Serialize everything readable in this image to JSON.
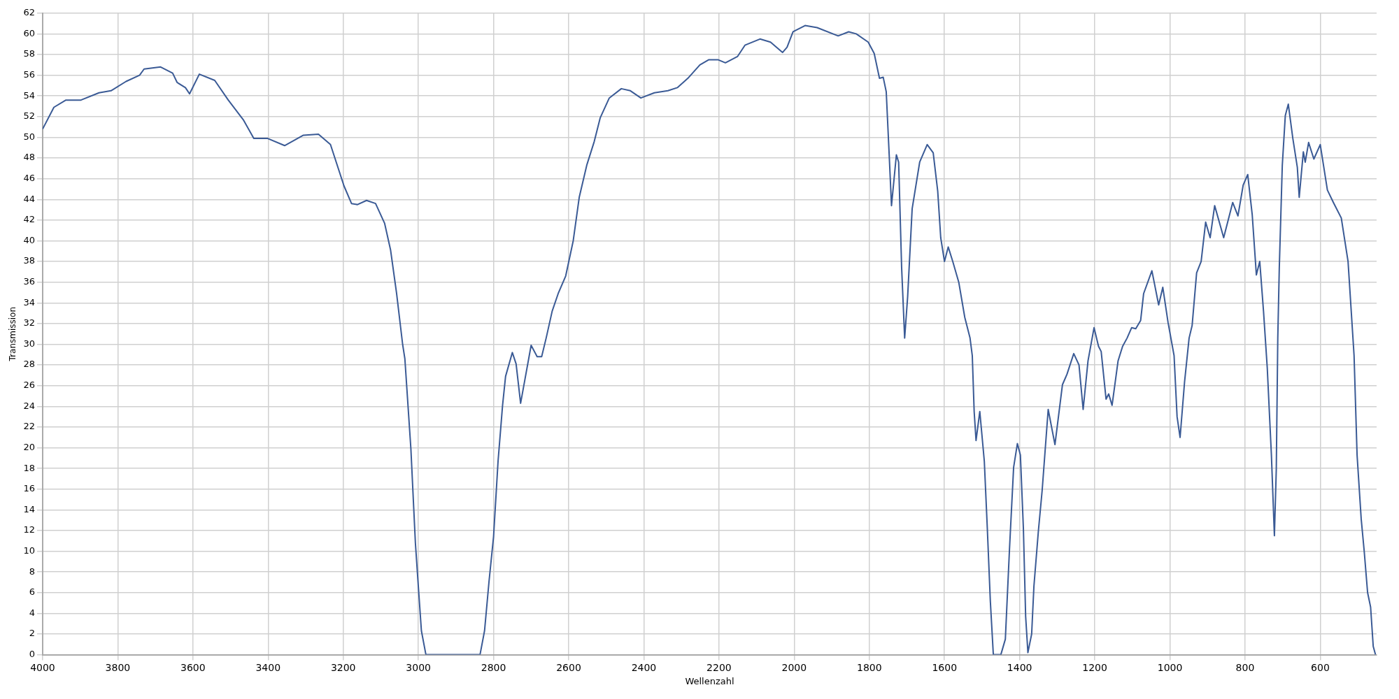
{
  "chart_data": {
    "type": "line",
    "xlabel": "Wellenzahl",
    "ylabel": "Transmission",
    "xlim": [
      4000,
      450
    ],
    "ylim": [
      0,
      62
    ],
    "xticks": [
      4000,
      3800,
      3600,
      3400,
      3200,
      3000,
      2800,
      2600,
      2400,
      2200,
      2000,
      1800,
      1600,
      1400,
      1200,
      1000,
      800,
      600
    ],
    "yticks": [
      0,
      2,
      4,
      6,
      8,
      10,
      12,
      14,
      16,
      18,
      20,
      22,
      24,
      26,
      28,
      30,
      32,
      34,
      36,
      38,
      40,
      42,
      44,
      46,
      48,
      50,
      52,
      54,
      56,
      58,
      60,
      62
    ],
    "grid": true,
    "legend": false,
    "marker": "none",
    "line_style": "solid",
    "series": [
      {
        "color": "#3a5a95",
        "x": [
          4000,
          3970,
          3938,
          3898,
          3850,
          3818,
          3778,
          3742,
          3730,
          3686,
          3654,
          3642,
          3620,
          3609,
          3583,
          3542,
          3506,
          3466,
          3438,
          3402,
          3356,
          3306,
          3266,
          3234,
          3198,
          3178,
          3162,
          3138,
          3114,
          3090,
          3074,
          3058,
          3042,
          3036,
          3020,
          3008,
          3000,
          2992,
          2980,
          2940,
          2836,
          2824,
          2812,
          2800,
          2788,
          2776,
          2768,
          2750,
          2740,
          2728,
          2716,
          2700,
          2684,
          2672,
          2660,
          2644,
          2628,
          2608,
          2588,
          2572,
          2552,
          2532,
          2516,
          2492,
          2460,
          2436,
          2408,
          2372,
          2336,
          2311,
          2283,
          2251,
          2227,
          2203,
          2183,
          2151,
          2131,
          2091,
          2063,
          2031,
          2019,
          2003,
          1971,
          1939,
          1883,
          1855,
          1835,
          1803,
          1787,
          1773,
          1763,
          1755,
          1747,
          1741,
          1728,
          1722,
          1714,
          1706,
          1698,
          1686,
          1666,
          1646,
          1630,
          1618,
          1610,
          1600,
          1590,
          1578,
          1562,
          1546,
          1532,
          1526,
          1521,
          1516,
          1506,
          1494,
          1486,
          1478,
          1470,
          1450,
          1438,
          1427,
          1416,
          1406,
          1398,
          1390,
          1384,
          1378,
          1368,
          1362,
          1350,
          1340,
          1324,
          1306,
          1286,
          1274,
          1256,
          1242,
          1231,
          1218,
          1202,
          1190,
          1183,
          1170,
          1163,
          1154,
          1138,
          1126,
          1114,
          1102,
          1091,
          1078,
          1070,
          1048,
          1030,
          1019,
          1005,
          989,
          981,
          973,
          961,
          949,
          941,
          929,
          917,
          905,
          893,
          881,
          857,
          833,
          819,
          805,
          793,
          781,
          770,
          761,
          751,
          741,
          730,
          722,
          717,
          713,
          709,
          701,
          693,
          685,
          673,
          661,
          656,
          645,
          640,
          631,
          617,
          600,
          581,
          565,
          544,
          526,
          510,
          502,
          491,
          483,
          474,
          466,
          459,
          453
        ],
        "values": [
          50.8,
          52.9,
          53.6,
          53.6,
          54.3,
          54.5,
          55.4,
          56.0,
          56.6,
          56.8,
          56.2,
          55.3,
          54.8,
          54.2,
          56.1,
          55.5,
          53.6,
          51.7,
          49.9,
          49.9,
          49.2,
          50.2,
          50.3,
          49.3,
          45.3,
          43.6,
          43.5,
          43.9,
          43.6,
          41.7,
          39.1,
          34.9,
          30.0,
          28.6,
          19.9,
          10.8,
          6.5,
          2.3,
          0,
          0,
          0,
          2.3,
          7.1,
          11.4,
          18.7,
          24.1,
          26.9,
          29.2,
          28.1,
          24.3,
          26.7,
          29.9,
          28.8,
          28.8,
          30.6,
          33.2,
          34.9,
          36.6,
          40.0,
          44.2,
          47.3,
          49.6,
          51.9,
          53.8,
          54.7,
          54.5,
          53.8,
          54.3,
          54.5,
          54.8,
          55.7,
          57.0,
          57.5,
          57.5,
          57.2,
          57.8,
          58.9,
          59.5,
          59.2,
          58.2,
          58.7,
          60.2,
          60.8,
          60.6,
          59.8,
          60.2,
          60.0,
          59.2,
          58.1,
          55.7,
          55.8,
          54.4,
          48.2,
          43.4,
          48.3,
          47.6,
          37.4,
          30.6,
          34.6,
          43.1,
          47.6,
          49.3,
          48.5,
          44.8,
          40.3,
          38.0,
          39.4,
          38.0,
          36.0,
          32.6,
          30.6,
          28.9,
          23.5,
          20.7,
          23.5,
          18.7,
          12.2,
          5.2,
          0,
          0,
          1.5,
          10.2,
          18.1,
          20.4,
          19.3,
          12.2,
          3.7,
          0.2,
          2.0,
          6.6,
          12.0,
          15.9,
          23.7,
          20.3,
          26.1,
          27.1,
          29.1,
          28.0,
          23.7,
          28.4,
          31.6,
          29.8,
          29.3,
          24.7,
          25.2,
          24.1,
          28.4,
          29.8,
          30.6,
          31.6,
          31.5,
          32.3,
          34.9,
          37.1,
          33.8,
          35.5,
          32.1,
          28.9,
          23.0,
          21.0,
          26.4,
          30.6,
          31.8,
          36.9,
          38.0,
          41.8,
          40.3,
          43.4,
          40.3,
          43.7,
          42.4,
          45.4,
          46.4,
          42.5,
          36.7,
          38.0,
          33.2,
          27.7,
          19.3,
          11.5,
          17.9,
          30.6,
          37.4,
          47.3,
          52.1,
          53.2,
          49.9,
          47.1,
          44.2,
          48.6,
          47.6,
          49.5,
          47.9,
          49.3,
          44.9,
          43.7,
          42.2,
          38.0,
          28.9,
          19.3,
          13.1,
          10.0,
          6.0,
          4.6,
          0.8,
          0
        ]
      }
    ]
  }
}
